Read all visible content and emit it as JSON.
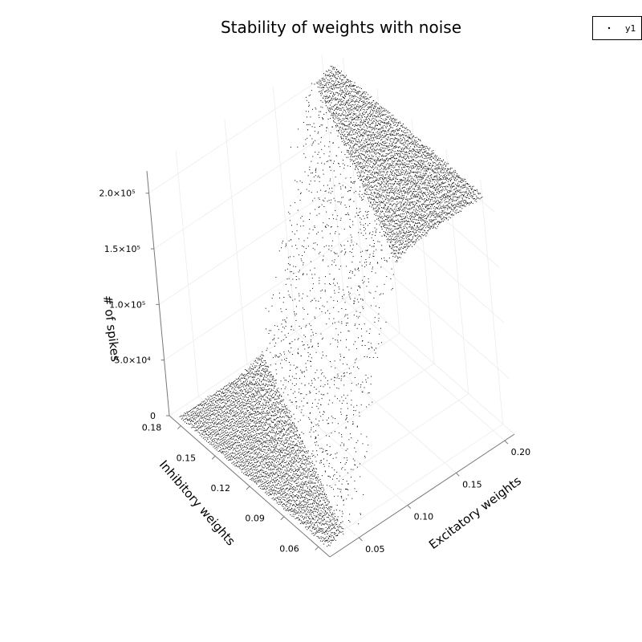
{
  "chart_data": {
    "type": "scatter",
    "title": "Stability of weights with noise",
    "xlabel": "Excitatory weights",
    "ylabel": "Inhibitory weights",
    "zlabel": "# of spikes",
    "x_ticks": [
      0.05,
      0.1,
      0.15,
      0.2
    ],
    "x_tick_labels": [
      "0.05",
      "0.10",
      "0.15",
      "0.20"
    ],
    "y_ticks": [
      0.06,
      0.09,
      0.12,
      0.15,
      0.18
    ],
    "y_tick_labels": [
      "0.06",
      "0.09",
      "0.12",
      "0.15",
      "0.18"
    ],
    "z_ticks": [
      0,
      50000,
      100000,
      150000,
      200000
    ],
    "z_tick_labels": [
      "0",
      "5.0×10⁴",
      "1.0×10⁵",
      "1.5×10⁵",
      "2.0×10⁵"
    ],
    "xlim": [
      0.02,
      0.21
    ],
    "ylim": [
      0.05,
      0.19
    ],
    "zlim": [
      0,
      220000
    ],
    "grid": true,
    "legend_position": "top-right",
    "series": [
      {
        "name": "y1",
        "marker": "point",
        "color": "#000000",
        "surface_model": {
          "low_level": 0,
          "high_level": 213000,
          "transition_center": "0.075 + 0.55 * inhibitory_weight",
          "transition_width": 0.012
        }
      }
    ]
  }
}
